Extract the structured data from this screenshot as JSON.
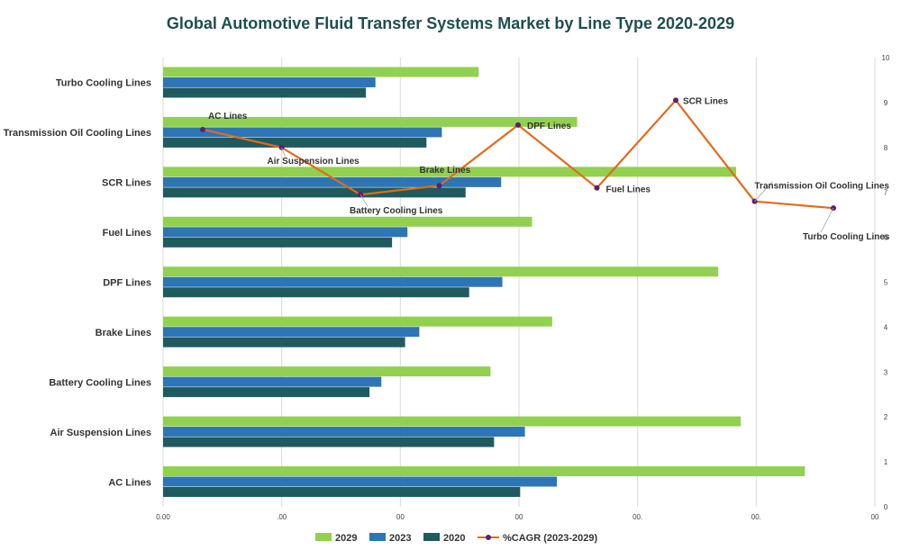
{
  "chart_data": {
    "type": "bar",
    "orientation": "horizontal",
    "title": "Global Automotive Fluid Transfer Systems Market by Line Type 2020-2029",
    "categories": [
      "AC Lines",
      "Air Suspension Lines",
      "Battery Cooling Lines",
      "Brake Lines",
      "DPF Lines",
      "Fuel Lines",
      "SCR Lines",
      "Transmission Oil Cooling Lines",
      "Turbo Cooling Lines"
    ],
    "series": [
      {
        "name": "2029",
        "color": "#92d050",
        "values": [
          5.41,
          4.87,
          2.76,
          3.28,
          4.68,
          3.11,
          4.83,
          3.49,
          2.66
        ]
      },
      {
        "name": "2023",
        "color": "#2e75b6",
        "values": [
          3.32,
          3.05,
          1.84,
          2.16,
          2.86,
          2.06,
          2.85,
          2.35,
          1.79
        ]
      },
      {
        "name": "2020",
        "color": "#1f5a5f",
        "values": [
          3.01,
          2.79,
          1.74,
          2.04,
          2.58,
          1.93,
          2.55,
          2.22,
          1.71
        ]
      }
    ],
    "line_series": {
      "name": "%CAGR (2023-2029)",
      "color": "#e06c1c",
      "marker_color": "#5b1f73",
      "axis": "secondary",
      "values": [
        8.4,
        8.0,
        6.95,
        7.15,
        8.5,
        7.1,
        9.05,
        6.8,
        6.65
      ]
    },
    "x_ticks": [
      "0.00",
      ".00",
      "00",
      "00",
      "00.",
      "00.",
      "00"
    ],
    "xlim": [
      0,
      6
    ],
    "y2_ticks": [
      "0",
      "1",
      "2",
      "3",
      "4",
      "5",
      "6",
      "7",
      "8",
      "9",
      "10"
    ],
    "y2lim": [
      0,
      10
    ],
    "legend_position": "bottom"
  }
}
